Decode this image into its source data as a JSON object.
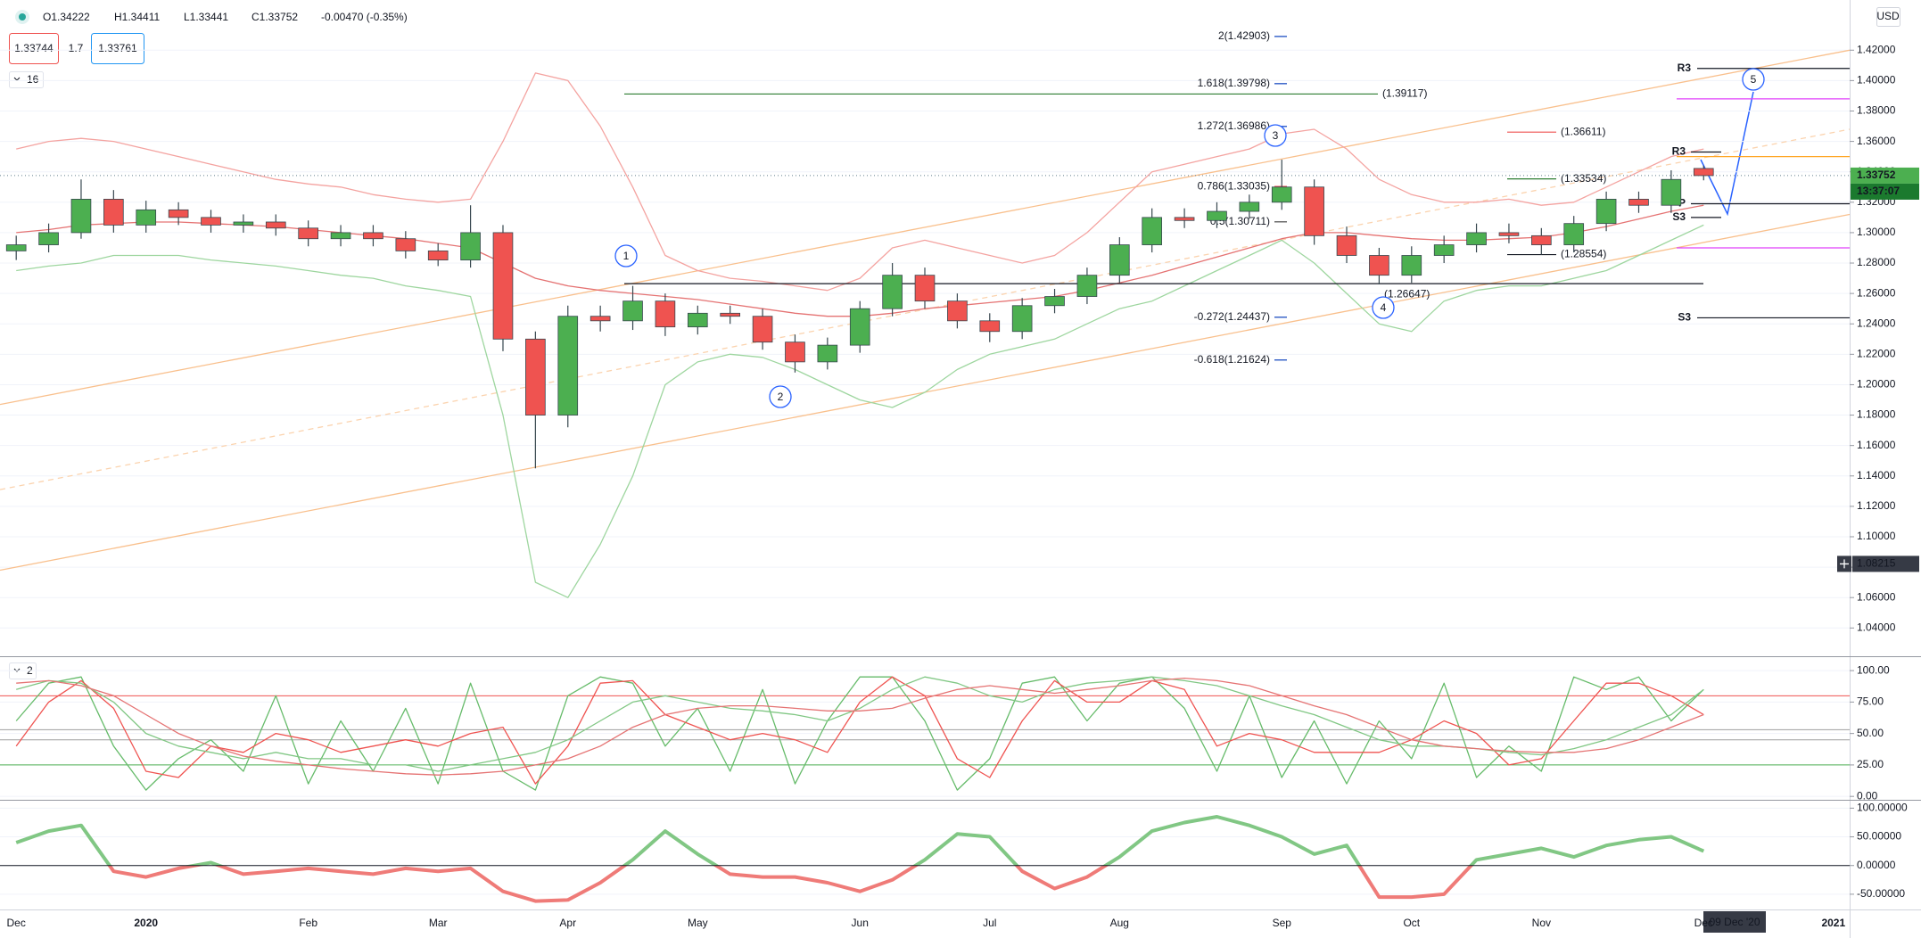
{
  "legend": {
    "open": "O1.34222",
    "high": "H1.34411",
    "low": "L1.33441",
    "close": "C1.33752",
    "change": "-0.00470 (-0.35%)",
    "bid": "1.33744",
    "spread": "1.7",
    "ask": "1.33761",
    "indicators": "16",
    "currency": "USD"
  },
  "chart_data": [
    {
      "type": "candlestick",
      "categories": [
        "Dec",
        null,
        null,
        null,
        "2020",
        null,
        null,
        null,
        null,
        "Feb",
        null,
        null,
        null,
        "Mar",
        null,
        null,
        null,
        "Apr",
        null,
        null,
        null,
        "May",
        null,
        null,
        null,
        null,
        "Jun",
        null,
        null,
        null,
        "Jul",
        null,
        null,
        null,
        "Aug",
        null,
        null,
        null,
        null,
        "Sep",
        null,
        null,
        null,
        "Oct",
        null,
        null,
        null,
        "Nov",
        null,
        null,
        null,
        null,
        "Dec",
        null,
        null,
        null,
        "2021"
      ],
      "open": [
        1.288,
        1.292,
        1.3,
        1.322,
        1.305,
        1.315,
        1.31,
        1.305,
        1.307,
        1.303,
        1.296,
        1.3,
        1.296,
        1.288,
        1.282,
        1.3,
        1.23,
        1.18,
        1.245,
        1.242,
        1.255,
        1.238,
        1.247,
        1.245,
        1.228,
        1.215,
        1.226,
        1.25,
        1.272,
        1.255,
        1.242,
        1.235,
        1.252,
        1.258,
        1.272,
        1.292,
        1.31,
        1.308,
        1.314,
        1.32,
        1.33,
        1.298,
        1.285,
        1.272,
        1.285,
        1.292,
        1.3,
        1.298,
        1.292,
        1.306,
        1.322,
        1.318,
        1.34222,
        null,
        null,
        null,
        null
      ],
      "high": [
        1.298,
        1.306,
        1.335,
        1.328,
        1.321,
        1.32,
        1.315,
        1.312,
        1.312,
        1.308,
        1.305,
        1.305,
        1.301,
        1.293,
        1.318,
        1.305,
        1.235,
        1.252,
        1.252,
        1.265,
        1.26,
        1.252,
        1.252,
        1.25,
        1.233,
        1.231,
        1.255,
        1.28,
        1.277,
        1.26,
        1.247,
        1.257,
        1.263,
        1.277,
        1.297,
        1.316,
        1.316,
        1.32,
        1.325,
        1.348,
        1.335,
        1.304,
        1.29,
        1.291,
        1.298,
        1.306,
        1.306,
        1.303,
        1.311,
        1.327,
        1.327,
        1.341,
        1.34411,
        null,
        null,
        null,
        null
      ],
      "low": [
        1.282,
        1.287,
        1.296,
        1.3,
        1.3,
        1.305,
        1.3,
        1.3,
        1.298,
        1.291,
        1.291,
        1.291,
        1.283,
        1.278,
        1.277,
        1.222,
        1.145,
        1.172,
        1.235,
        1.236,
        1.232,
        1.233,
        1.24,
        1.223,
        1.208,
        1.21,
        1.221,
        1.245,
        1.25,
        1.237,
        1.228,
        1.23,
        1.247,
        1.253,
        1.267,
        1.287,
        1.303,
        1.303,
        1.309,
        1.315,
        1.292,
        1.28,
        1.266,
        1.267,
        1.28,
        1.287,
        1.293,
        1.2855,
        1.287,
        1.301,
        1.313,
        1.313,
        1.33441,
        null,
        null,
        null,
        null
      ],
      "close": [
        1.292,
        1.3,
        1.322,
        1.305,
        1.315,
        1.31,
        1.305,
        1.307,
        1.303,
        1.296,
        1.3,
        1.296,
        1.288,
        1.282,
        1.3,
        1.23,
        1.18,
        1.245,
        1.242,
        1.255,
        1.238,
        1.247,
        1.245,
        1.228,
        1.215,
        1.226,
        1.25,
        1.272,
        1.255,
        1.242,
        1.235,
        1.252,
        1.258,
        1.272,
        1.292,
        1.31,
        1.308,
        1.314,
        1.32,
        1.33,
        1.298,
        1.285,
        1.272,
        1.285,
        1.292,
        1.3,
        1.298,
        1.292,
        1.306,
        1.322,
        1.318,
        1.335,
        1.33752,
        null,
        null,
        null,
        null
      ],
      "colors": {
        "up": "#4caf50",
        "down": "#ef5350"
      },
      "series": [
        {
          "color": "#f4a3a0",
          "values": [
            1.355,
            1.36,
            1.362,
            1.36,
            1.355,
            1.35,
            1.345,
            1.34,
            1.335,
            1.332,
            1.33,
            1.325,
            1.322,
            1.32,
            1.322,
            1.36,
            1.405,
            1.4,
            1.37,
            1.33,
            1.285,
            1.275,
            1.27,
            1.268,
            1.265,
            1.262,
            1.27,
            1.29,
            1.295,
            1.29,
            1.285,
            1.28,
            1.285,
            1.3,
            1.32,
            1.34,
            1.345,
            1.35,
            1.355,
            1.365,
            1.368,
            1.355,
            1.335,
            1.325,
            1.32,
            1.32,
            1.322,
            1.318,
            1.32,
            1.33,
            1.34,
            1.35,
            1.355,
            null,
            null,
            null,
            null
          ]
        },
        {
          "color": "#9ed69f",
          "values": [
            1.275,
            1.278,
            1.28,
            1.285,
            1.285,
            1.285,
            1.282,
            1.28,
            1.278,
            1.275,
            1.272,
            1.27,
            1.265,
            1.262,
            1.258,
            1.18,
            1.07,
            1.06,
            1.095,
            1.14,
            1.2,
            1.215,
            1.22,
            1.218,
            1.21,
            1.2,
            1.19,
            1.185,
            1.195,
            1.21,
            1.22,
            1.225,
            1.23,
            1.24,
            1.25,
            1.255,
            1.265,
            1.275,
            1.285,
            1.295,
            1.28,
            1.26,
            1.24,
            1.235,
            1.255,
            1.262,
            1.265,
            1.265,
            1.27,
            1.275,
            1.285,
            1.295,
            1.305,
            null,
            null,
            null,
            null
          ]
        },
        {
          "color": "#e57373",
          "values": [
            1.3,
            1.302,
            1.305,
            1.306,
            1.307,
            1.307,
            1.306,
            1.305,
            1.304,
            1.302,
            1.3,
            1.298,
            1.296,
            1.293,
            1.29,
            1.28,
            1.27,
            1.265,
            1.262,
            1.26,
            1.258,
            1.256,
            1.253,
            1.25,
            1.247,
            1.245,
            1.245,
            1.247,
            1.25,
            1.252,
            1.254,
            1.256,
            1.258,
            1.262,
            1.267,
            1.272,
            1.278,
            1.284,
            1.29,
            1.296,
            1.3,
            1.3,
            1.298,
            1.296,
            1.295,
            1.295,
            1.296,
            1.297,
            1.3,
            1.304,
            1.309,
            1.314,
            1.318,
            null,
            null,
            null,
            null
          ]
        }
      ],
      "channels": [
        {
          "color": "#f9c08d",
          "dashed": false,
          "values": [
            1.187,
            1.42
          ]
        },
        {
          "color": "#f9c08d",
          "dashed": false,
          "values": [
            1.078,
            1.312
          ]
        },
        {
          "color": "#fbd3ae",
          "dashed": true,
          "values": [
            1.131,
            1.368
          ]
        }
      ],
      "fib_levels": [
        {
          "value": 1.42903,
          "label": "2(1.42903)",
          "color": "#1e4fc2"
        },
        {
          "value": 1.39798,
          "label": "1.618(1.39798)",
          "color": "#1e4fc2"
        },
        {
          "value": 1.36986,
          "label": "1.272(1.36986)",
          "color": "#1e4fc2"
        },
        {
          "value": 1.33035,
          "label": "0.786(1.33035)",
          "color": "#ef5350"
        },
        {
          "value": 1.30711,
          "label": "0.5(1.30711)",
          "color": "#555"
        },
        {
          "value": 1.24437,
          "label": "-0.272(1.24437)",
          "color": "#1e4fc2"
        },
        {
          "value": 1.21624,
          "label": "-0.618(1.21624)",
          "color": "#1e4fc2"
        }
      ],
      "price_levels": [
        {
          "value": 1.39117,
          "label": "(1.39117)",
          "color": "#2e7d32"
        },
        {
          "value": 1.36611,
          "label": "(1.36611)",
          "color": "#ef5350"
        },
        {
          "value": 1.33534,
          "label": "(1.33534)",
          "color": "#2e7d32"
        },
        {
          "value": 1.28554,
          "label": "(1.28554)",
          "color": "#131722"
        },
        {
          "value": 1.26647,
          "label": "(1.26647)",
          "color": "#131722"
        }
      ],
      "pivots": [
        {
          "label": "R3",
          "value": 1.408
        },
        {
          "label": "S3",
          "value": 1.244
        },
        {
          "label": "R3",
          "value": 1.353
        },
        {
          "label": "P",
          "value": 1.319
        },
        {
          "label": "S3",
          "value": 1.31
        }
      ],
      "levels": [
        {
          "value": 1.388,
          "color": "#e040fb"
        },
        {
          "value": 1.35,
          "color": "#ffa726"
        },
        {
          "value": 1.29,
          "color": "#e040fb"
        }
      ],
      "waves": [
        "1",
        "2",
        "3",
        "4",
        "5"
      ],
      "last_price": 1.33752,
      "countdown": "13:37:07",
      "crosshair_price": 1.08215,
      "crosshair_date": "09 Dec '20",
      "ylim": [
        1.022,
        1.453
      ],
      "yticks": [
        {
          "value": 1.04,
          "label": "1.04000"
        },
        {
          "value": 1.06,
          "label": "1.06000"
        },
        {
          "value": 1.08,
          "label": "1.08000"
        },
        {
          "value": 1.1,
          "label": "1.10000"
        },
        {
          "value": 1.12,
          "label": "1.12000"
        },
        {
          "value": 1.14,
          "label": "1.14000"
        },
        {
          "value": 1.16,
          "label": "1.16000"
        },
        {
          "value": 1.18,
          "label": "1.18000"
        },
        {
          "value": 1.2,
          "label": "1.20000"
        },
        {
          "value": 1.22,
          "label": "1.22000"
        },
        {
          "value": 1.24,
          "label": "1.24000"
        },
        {
          "value": 1.26,
          "label": "1.26000"
        },
        {
          "value": 1.28,
          "label": "1.28000"
        },
        {
          "value": 1.3,
          "label": "1.30000"
        },
        {
          "value": 1.32,
          "label": "1.32000"
        },
        {
          "value": 1.34,
          "label": "1.34000"
        },
        {
          "value": 1.36,
          "label": "1.36000"
        },
        {
          "value": 1.38,
          "label": "1.38000"
        },
        {
          "value": 1.4,
          "label": "1.40000"
        },
        {
          "value": 1.42,
          "label": "1.42000"
        }
      ],
      "grid": true
    },
    {
      "type": "line",
      "panel_label": "2",
      "series": [
        {
          "color": "#66bb6a",
          "values": [
            60,
            90,
            95,
            40,
            5,
            30,
            45,
            20,
            80,
            10,
            60,
            20,
            70,
            10,
            90,
            20,
            5,
            80,
            95,
            90,
            40,
            70,
            20,
            85,
            10,
            60,
            95,
            95,
            60,
            5,
            30,
            90,
            95,
            60,
            90,
            95,
            70,
            20,
            80,
            15,
            60,
            10,
            60,
            30,
            90,
            15,
            40,
            20,
            95,
            85,
            95,
            60,
            85,
            null,
            null,
            null,
            null
          ]
        },
        {
          "color": "#ef5350",
          "values": [
            40,
            75,
            92,
            70,
            20,
            15,
            40,
            35,
            50,
            45,
            35,
            40,
            45,
            40,
            50,
            55,
            10,
            40,
            90,
            92,
            65,
            55,
            45,
            50,
            45,
            35,
            75,
            95,
            80,
            30,
            15,
            60,
            92,
            75,
            75,
            92,
            85,
            40,
            50,
            45,
            35,
            35,
            35,
            45,
            60,
            50,
            25,
            30,
            60,
            90,
            90,
            80,
            65,
            null,
            null,
            null,
            null
          ]
        },
        {
          "color": "#81c784",
          "values": [
            85,
            92,
            90,
            75,
            50,
            40,
            35,
            30,
            35,
            30,
            30,
            25,
            25,
            20,
            25,
            30,
            35,
            45,
            60,
            75,
            80,
            75,
            70,
            68,
            65,
            60,
            70,
            85,
            95,
            90,
            80,
            75,
            85,
            90,
            92,
            95,
            92,
            88,
            80,
            72,
            65,
            55,
            45,
            40,
            40,
            38,
            35,
            33,
            38,
            45,
            55,
            65,
            85,
            null,
            null,
            null,
            null
          ]
        },
        {
          "color": "#e57373",
          "values": [
            90,
            92,
            88,
            80,
            65,
            50,
            40,
            32,
            28,
            25,
            22,
            20,
            18,
            17,
            18,
            20,
            25,
            30,
            40,
            55,
            65,
            70,
            72,
            72,
            70,
            68,
            68,
            70,
            78,
            85,
            88,
            85,
            82,
            85,
            88,
            92,
            94,
            92,
            88,
            80,
            72,
            65,
            55,
            45,
            40,
            38,
            36,
            35,
            35,
            38,
            45,
            55,
            65,
            null,
            null,
            null,
            null
          ]
        }
      ],
      "levels": [
        {
          "value": 80,
          "color": "#ef5350"
        },
        {
          "value": 53,
          "color": "#9e9e9e"
        },
        {
          "value": 45,
          "color": "#9e9e9e"
        },
        {
          "value": 25,
          "color": "#4caf50"
        }
      ],
      "ylim": [
        -2,
        110
      ],
      "yticks": [
        {
          "value": 0,
          "label": "0.00"
        },
        {
          "value": 25,
          "label": "25.00"
        },
        {
          "value": 50,
          "label": "50.00"
        },
        {
          "value": 75,
          "label": "75.00"
        },
        {
          "value": 100,
          "label": "100.00"
        }
      ]
    },
    {
      "type": "line",
      "values": [
        40,
        60,
        70,
        -10,
        -20,
        -5,
        5,
        -15,
        -10,
        -5,
        -10,
        -15,
        -5,
        -10,
        -5,
        -45,
        -62,
        -60,
        -30,
        10,
        60,
        20,
        -15,
        -20,
        -20,
        -30,
        -45,
        -25,
        10,
        55,
        50,
        -10,
        -40,
        -20,
        15,
        60,
        75,
        85,
        70,
        50,
        20,
        35,
        -55,
        -55,
        -50,
        10,
        20,
        30,
        15,
        35,
        45,
        50,
        25,
        null,
        null,
        null,
        null
      ],
      "colors": {
        "positive": "#81c784",
        "negative": "#ef7b78"
      },
      "ylim": [
        -75,
        113
      ],
      "yticks": [
        {
          "value": -50,
          "label": "-50.00000"
        },
        {
          "value": 0,
          "label": "0.00000"
        },
        {
          "value": 50,
          "label": "50.00000"
        },
        {
          "value": 100,
          "label": "100.00000"
        }
      ]
    }
  ]
}
